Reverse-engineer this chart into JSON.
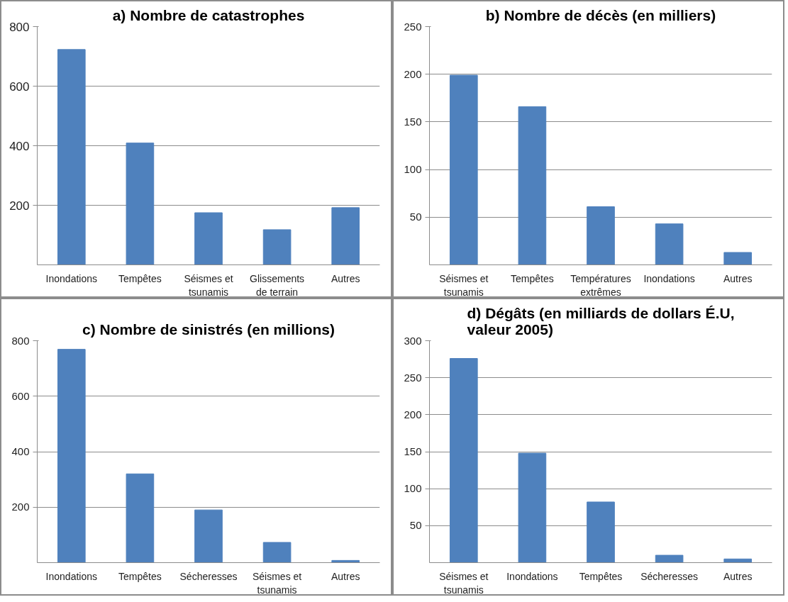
{
  "chart_data": [
    {
      "type": "bar",
      "title": "a) Nombre de catastrophes",
      "categories": [
        "Inondations",
        "Tempêtes",
        "Séismes et tsunamis",
        "Glissements de terrain",
        "Autres"
      ],
      "values": [
        723,
        409,
        175,
        118,
        192
      ],
      "color": "#4f81bd",
      "ylim": [
        0,
        800
      ],
      "yticks": [
        200,
        400,
        600,
        800
      ],
      "grid": "y"
    },
    {
      "type": "bar",
      "title": "b) Nombre de décès (en milliers)",
      "categories": [
        "Séismes et tsunamis",
        "Tempêtes",
        "Températures extrêmes",
        "Inondations",
        "Autres"
      ],
      "values": [
        199,
        166,
        61,
        43,
        13
      ],
      "color": "#4f81bd",
      "ylim": [
        0,
        250
      ],
      "yticks": [
        50,
        100,
        150,
        200,
        250
      ],
      "grid": "y"
    },
    {
      "type": "bar",
      "title": "c) Nombre de sinistrés (en millions)",
      "categories": [
        "Inondations",
        "Tempêtes",
        "Sécheresses",
        "Séismes et tsunamis",
        "Autres"
      ],
      "values": [
        769,
        320,
        190,
        73,
        8
      ],
      "color": "#4f81bd",
      "ylim": [
        0,
        800
      ],
      "yticks": [
        200,
        400,
        600,
        800
      ],
      "grid": "y"
    },
    {
      "type": "bar",
      "title": "d) Dégâts (en milliards de dollars É.U, valeur 2005)",
      "categories": [
        "Séismes et tsunamis",
        "Inondations",
        "Tempêtes",
        "Sécheresses",
        "Autres"
      ],
      "values": [
        276,
        148,
        82,
        10,
        5
      ],
      "color": "#4f81bd",
      "ylim": [
        0,
        300
      ],
      "yticks": [
        50,
        100,
        150,
        200,
        250,
        300
      ],
      "grid": "y"
    }
  ]
}
